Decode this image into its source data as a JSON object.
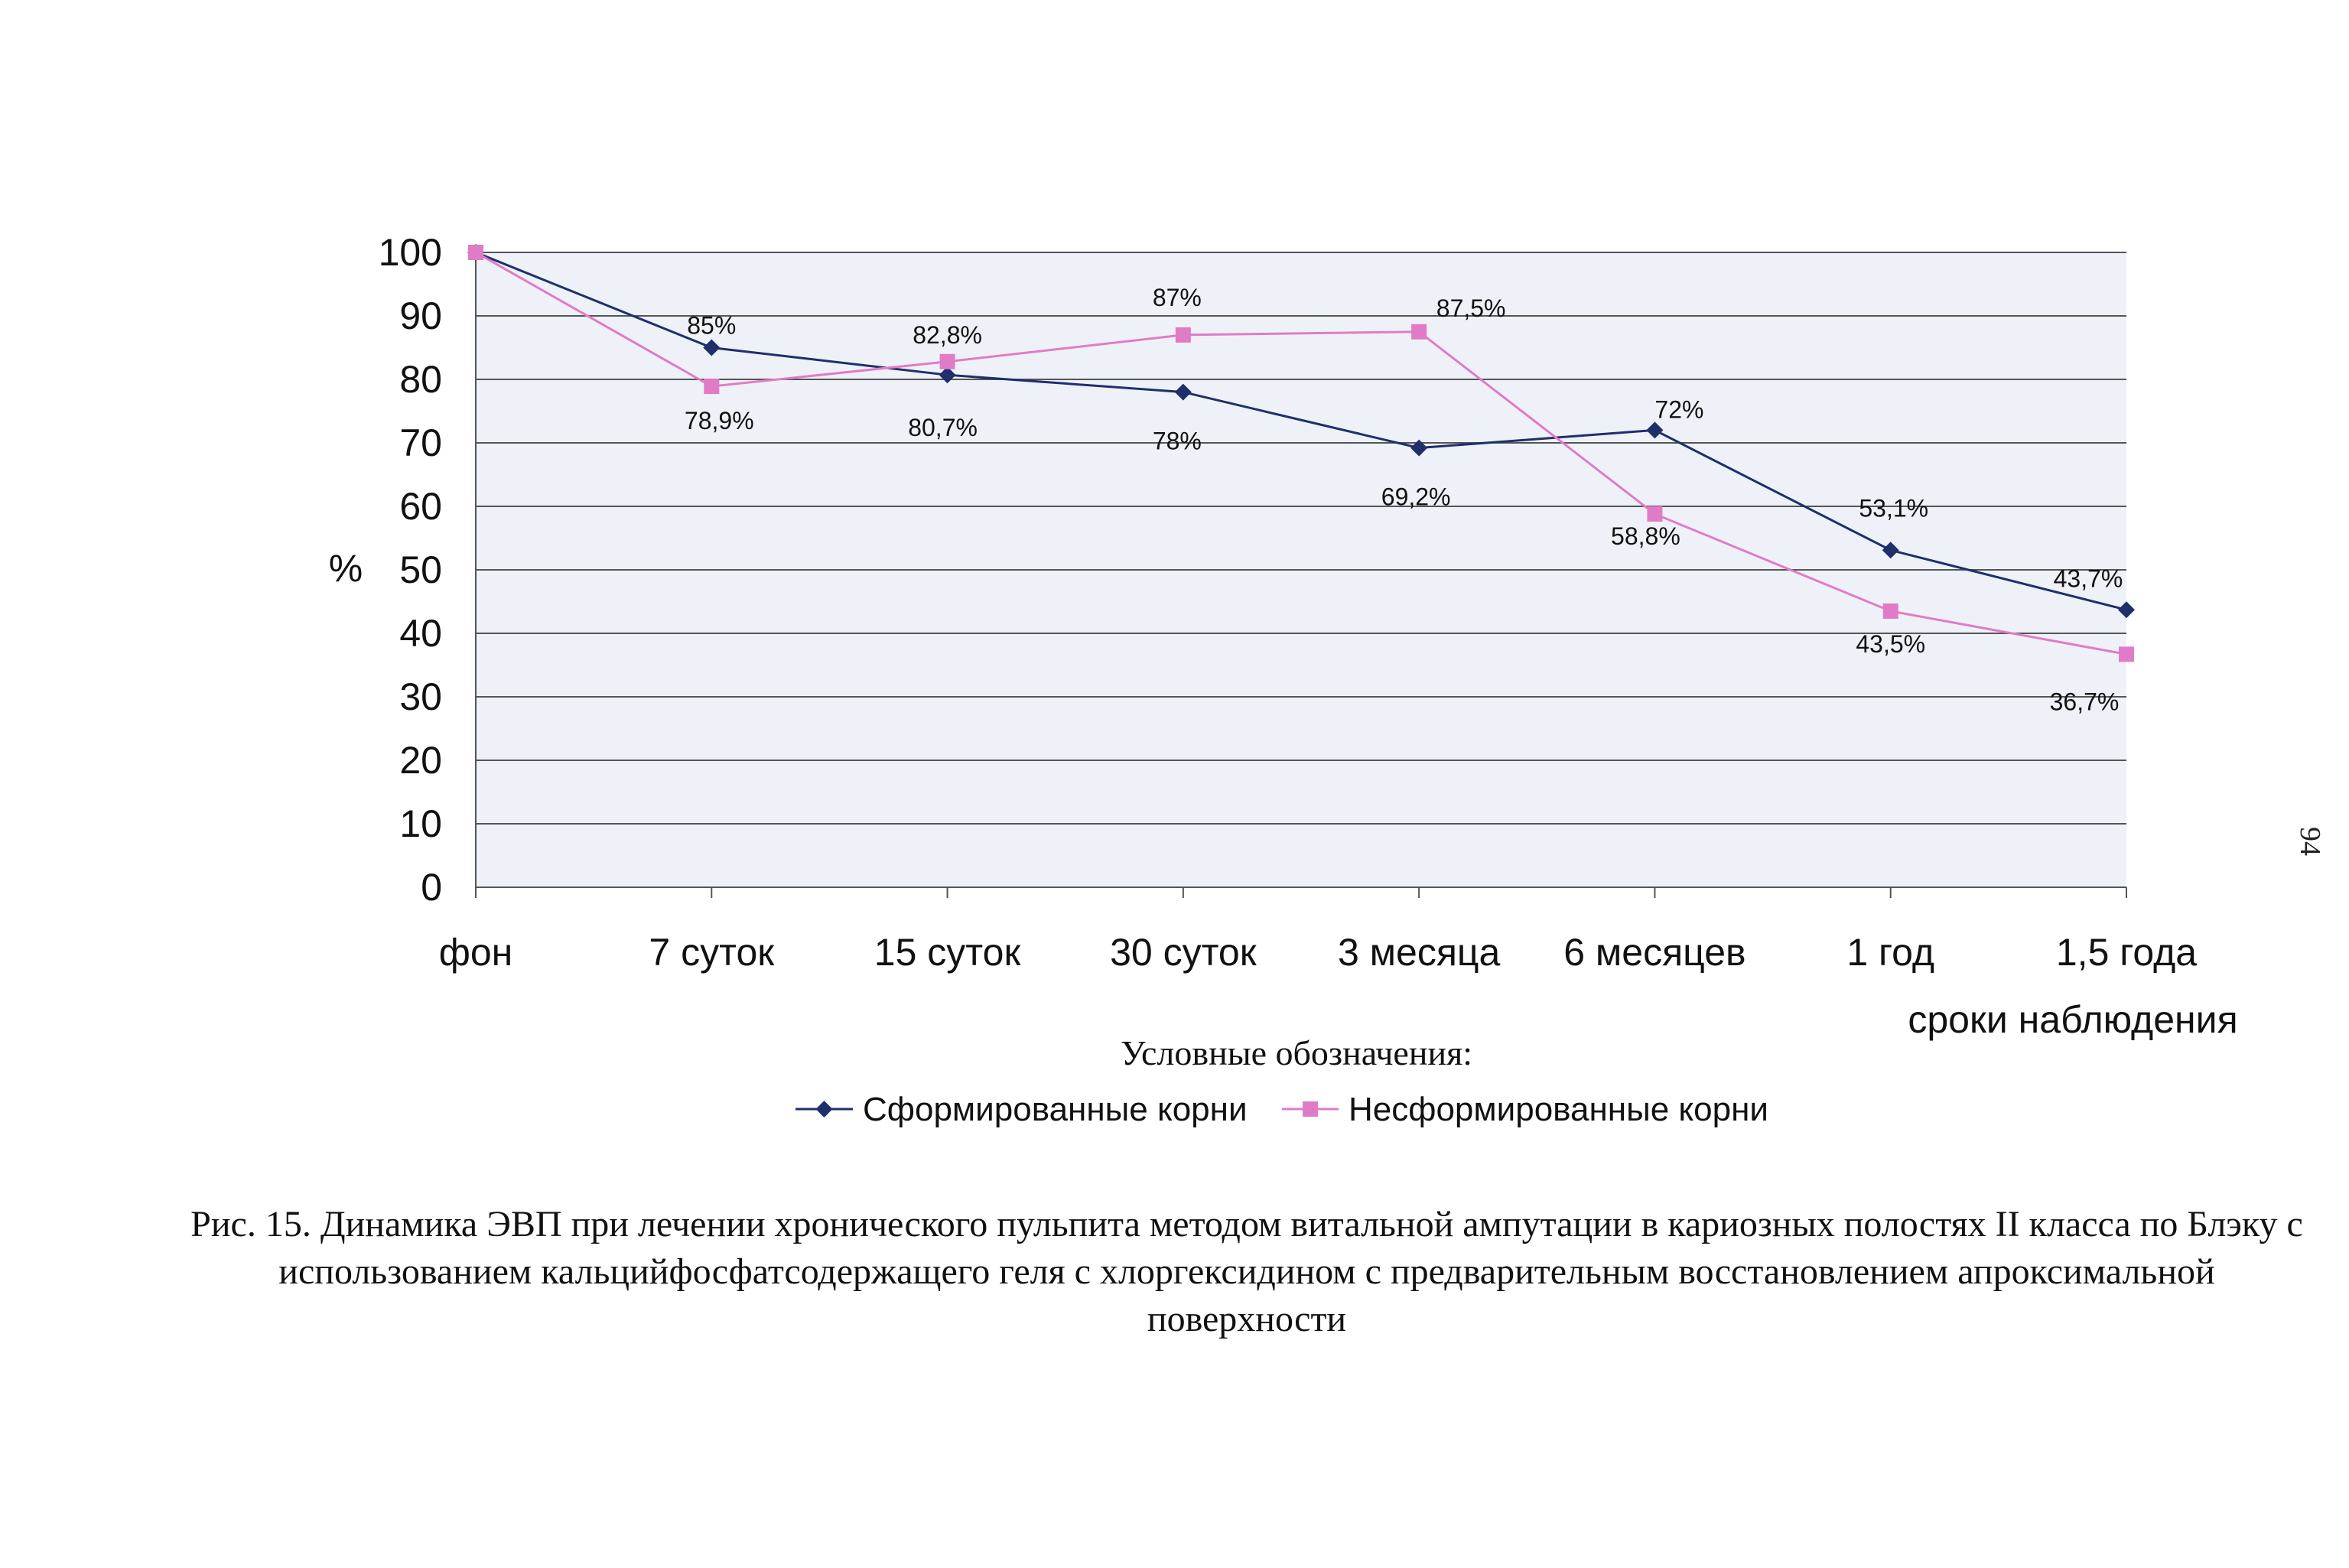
{
  "page_number": "94",
  "caption": "Рис. 15. Динамика ЭВП при лечении хронического пульпита методом витальной ампутации в кариозных полостях II класса по Блэку с использованием кальцийфосфатсодержащего геля с хлоргексидином с предварительным восстановлением апроксимальной поверхности",
  "legend_title": "Условные обозначения:",
  "colors": {
    "series1": "#1f2f6b",
    "series2": "#e07bc8",
    "grid": "#555555",
    "plot_bg": "#eef2f8"
  },
  "chart_data": {
    "type": "line",
    "title": "",
    "xlabel": "сроки наблюдения",
    "ylabel": "%",
    "ylim": [
      0,
      100
    ],
    "yticks": [
      "0",
      "10",
      "20",
      "30",
      "40",
      "50",
      "60",
      "70",
      "80",
      "90",
      "100"
    ],
    "grid": true,
    "legend_position": "bottom",
    "categories": [
      "фон",
      "7 суток",
      "15 суток",
      "30 суток",
      "3 месяца",
      "6 месяцев",
      "1 год",
      "1,5 года"
    ],
    "series": [
      {
        "name": "Сформированные корни",
        "values": [
          100,
          85,
          80.7,
          78,
          69.2,
          72,
          53.1,
          43.7
        ],
        "labels": [
          "",
          "85%",
          "80,7%",
          "78%",
          "69,2%",
          "72%",
          "53,1%",
          "43,7%"
        ],
        "marker": "diamond"
      },
      {
        "name": "Несформированные корни",
        "values": [
          100,
          78.9,
          82.8,
          87,
          87.5,
          58.8,
          43.5,
          36.7
        ],
        "labels": [
          "",
          "78,9%",
          "82,8%",
          "87%",
          "87,5%",
          "58,8%",
          "43,5%",
          "36,7%"
        ],
        "marker": "square"
      }
    ]
  }
}
